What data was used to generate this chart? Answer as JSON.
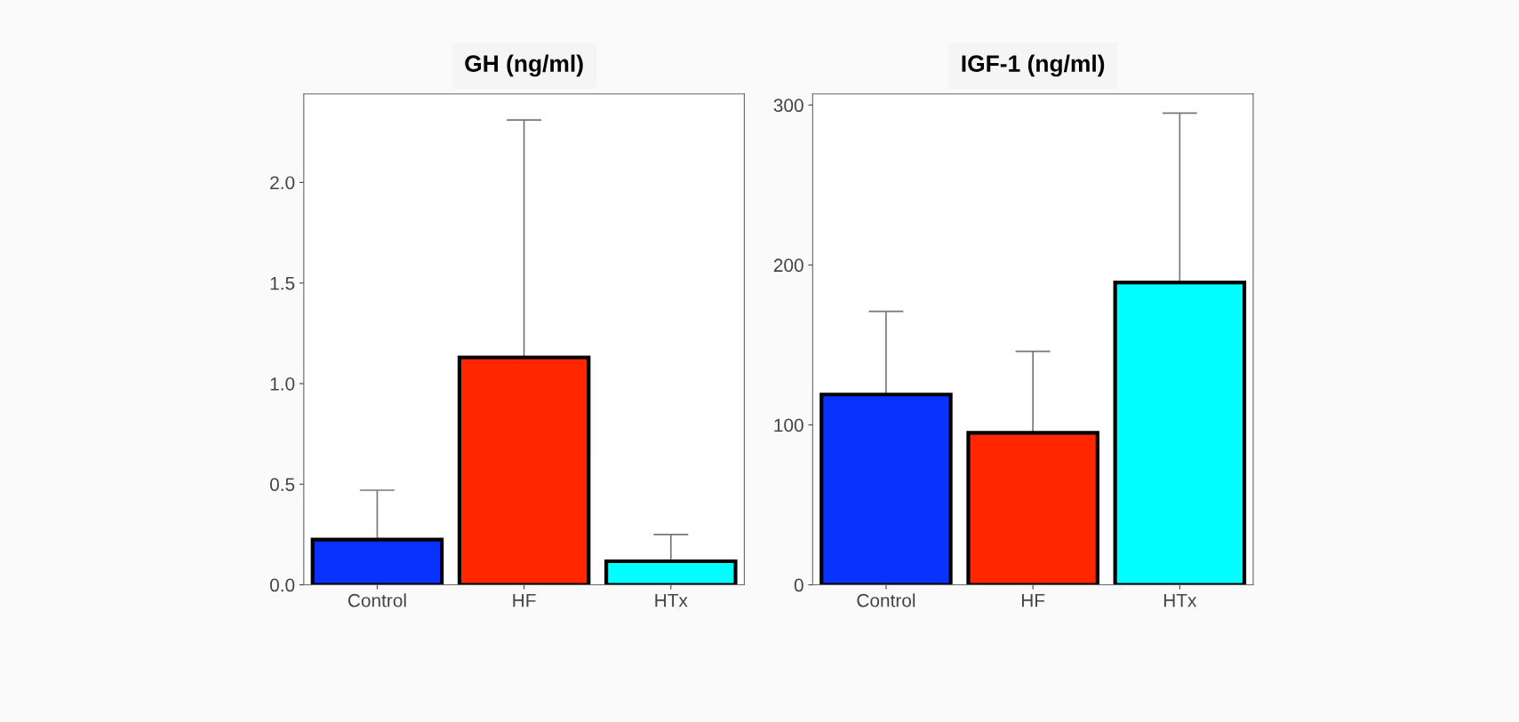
{
  "chart_data": [
    {
      "type": "bar",
      "title": "GH (ng/ml)",
      "categories": [
        "Control",
        "HF",
        "HTx"
      ],
      "values": [
        0.225,
        1.13,
        0.117
      ],
      "colors": [
        "#0a32ff",
        "#ff2600",
        "#00ffff"
      ],
      "errors": [
        [
          0.225,
          0.47
        ],
        [
          1.13,
          2.31
        ],
        [
          0.117,
          0.25
        ]
      ],
      "ylim": [
        0,
        2.44
      ],
      "yticks": [
        {
          "value": 0,
          "label": "0.0"
        },
        0.5,
        {
          "value": 1,
          "label": "1.0"
        },
        1.5,
        {
          "value": 2,
          "label": "2.0"
        }
      ],
      "grid": false
    },
    {
      "type": "bar",
      "title": "IGF-1 (ng/ml)",
      "categories": [
        "Control",
        "HF",
        "HTx"
      ],
      "values": [
        119,
        95,
        189
      ],
      "colors": [
        "#0a32ff",
        "#ff2600",
        "#00ffff"
      ],
      "errors": [
        [
          119,
          171
        ],
        [
          95,
          146
        ],
        [
          189,
          295
        ]
      ],
      "ylim": [
        0,
        307
      ],
      "yticks": [
        0,
        100,
        200,
        300
      ],
      "grid": false
    }
  ]
}
